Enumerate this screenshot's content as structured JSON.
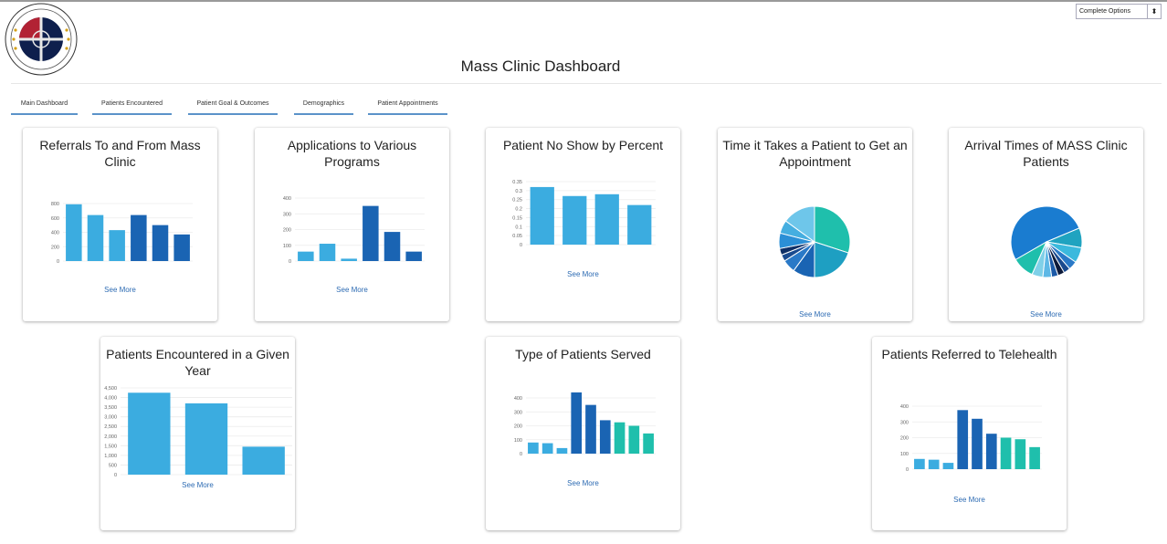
{
  "header": {
    "title": "Mass Clinic Dashboard",
    "options_value": "Complete Options",
    "options_arrow": "⬍",
    "logo_text": "MUSLIM AMERICAN ... MEDIC SERVICES"
  },
  "tabs": [
    {
      "label": "Main Dashboard"
    },
    {
      "label": "Patients Encountered"
    },
    {
      "label": "Patient Goal & Outcomes"
    },
    {
      "label": "Demographics"
    },
    {
      "label": "Patient Appointments"
    }
  ],
  "cards": [
    {
      "title": "Referrals To and From Mass Clinic",
      "see_more": "See More"
    },
    {
      "title": "Applications to Various Programs",
      "see_more": "See More"
    },
    {
      "title": "Patient No Show by Percent",
      "see_more": "See More"
    },
    {
      "title": "Time it Takes a Patient to Get an Appointment",
      "see_more": "See More"
    },
    {
      "title": "Arrival Times of MASS Clinic Patients",
      "see_more": "See More"
    },
    {
      "title": "Patients Encountered in a Given Year",
      "see_more": "See More"
    },
    {
      "title": "Type of Patients Served",
      "see_more": "See More"
    },
    {
      "title": "Patients Referred to Telehealth",
      "see_more": "See More"
    }
  ],
  "colors": {
    "light": "#3bace0",
    "dark": "#1a64b3",
    "teal": "#1fbfac",
    "tab_underline": "#5b93c9",
    "link": "#2d6bb3"
  },
  "chart_data": [
    {
      "type": "bar",
      "title": "Referrals To and From Mass Clinic",
      "yticks": [
        "800",
        "600",
        "400",
        "200",
        "0"
      ],
      "ylim": [
        0,
        800
      ],
      "values": [
        790,
        640,
        430,
        640,
        500,
        370
      ],
      "colors": [
        "#3bace0",
        "#3bace0",
        "#3bace0",
        "#1a64b3",
        "#1a64b3",
        "#1a64b3"
      ]
    },
    {
      "type": "bar",
      "title": "Applications to Various Programs",
      "yticks": [
        "400",
        "300",
        "200",
        "100",
        "0"
      ],
      "ylim": [
        0,
        400
      ],
      "values": [
        60,
        110,
        15,
        350,
        185,
        60
      ],
      "colors": [
        "#3bace0",
        "#3bace0",
        "#3bace0",
        "#1a64b3",
        "#1a64b3",
        "#1a64b3"
      ]
    },
    {
      "type": "bar",
      "title": "Patient No Show by Percent",
      "yticks": [
        "0.35",
        "0.3",
        "0.25",
        "0.2",
        "0.15",
        "0.1",
        "0.05",
        "0"
      ],
      "ylim": [
        0,
        0.35
      ],
      "values": [
        0.32,
        0.27,
        0.28,
        0.22
      ],
      "colors": [
        "#3bace0",
        "#3bace0",
        "#3bace0",
        "#3bace0"
      ]
    },
    {
      "type": "pie",
      "title": "Time it Takes a Patient to Get an Appointment",
      "values": [
        30,
        20,
        10,
        6,
        3,
        3,
        7,
        6,
        15
      ],
      "colors": [
        "#1fbfac",
        "#1e9fc2",
        "#1a64b3",
        "#2a79c7",
        "#1a4a8f",
        "#0f2f66",
        "#2b8fd6",
        "#45aee0",
        "#6ec6ea"
      ]
    },
    {
      "type": "pie",
      "title": "Arrival Times of MASS Clinic Patients",
      "values": [
        52,
        9,
        7,
        4,
        3,
        3,
        3,
        4,
        5,
        10
      ],
      "colors": [
        "#1a7cd0",
        "#1fa3c0",
        "#3bb9dd",
        "#2a79c7",
        "#1a4a8f",
        "#0d1a3a",
        "#1c5aa8",
        "#5db8e6",
        "#7fd0e8",
        "#1fbfac"
      ]
    },
    {
      "type": "bar",
      "title": "Patients Encountered in a Given Year",
      "yticks": [
        "4,500",
        "4,000",
        "3,500",
        "3,000",
        "2,500",
        "2,000",
        "1,500",
        "1,000",
        "500",
        "0"
      ],
      "ylim": [
        0,
        4500
      ],
      "values": [
        4250,
        3700,
        1450
      ],
      "colors": [
        "#3bace0",
        "#3bace0",
        "#3bace0"
      ]
    },
    {
      "type": "bar",
      "title": "Type of Patients Served",
      "yticks": [
        "400",
        "300",
        "200",
        "100",
        "0"
      ],
      "ylim": [
        0,
        400
      ],
      "values": [
        80,
        75,
        40,
        440,
        350,
        240,
        225,
        200,
        145
      ],
      "colors": [
        "#3bace0",
        "#3bace0",
        "#3bace0",
        "#1a64b3",
        "#1a64b3",
        "#1a64b3",
        "#1fbfac",
        "#1fbfac",
        "#1fbfac"
      ]
    },
    {
      "type": "bar",
      "title": "Patients Referred to Telehealth",
      "yticks": [
        "400",
        "300",
        "200",
        "100",
        "0"
      ],
      "ylim": [
        0,
        400
      ],
      "values": [
        65,
        60,
        40,
        375,
        320,
        225,
        200,
        190,
        140
      ],
      "colors": [
        "#3bace0",
        "#3bace0",
        "#3bace0",
        "#1a64b3",
        "#1a64b3",
        "#1a64b3",
        "#1fbfac",
        "#1fbfac",
        "#1fbfac"
      ]
    }
  ]
}
